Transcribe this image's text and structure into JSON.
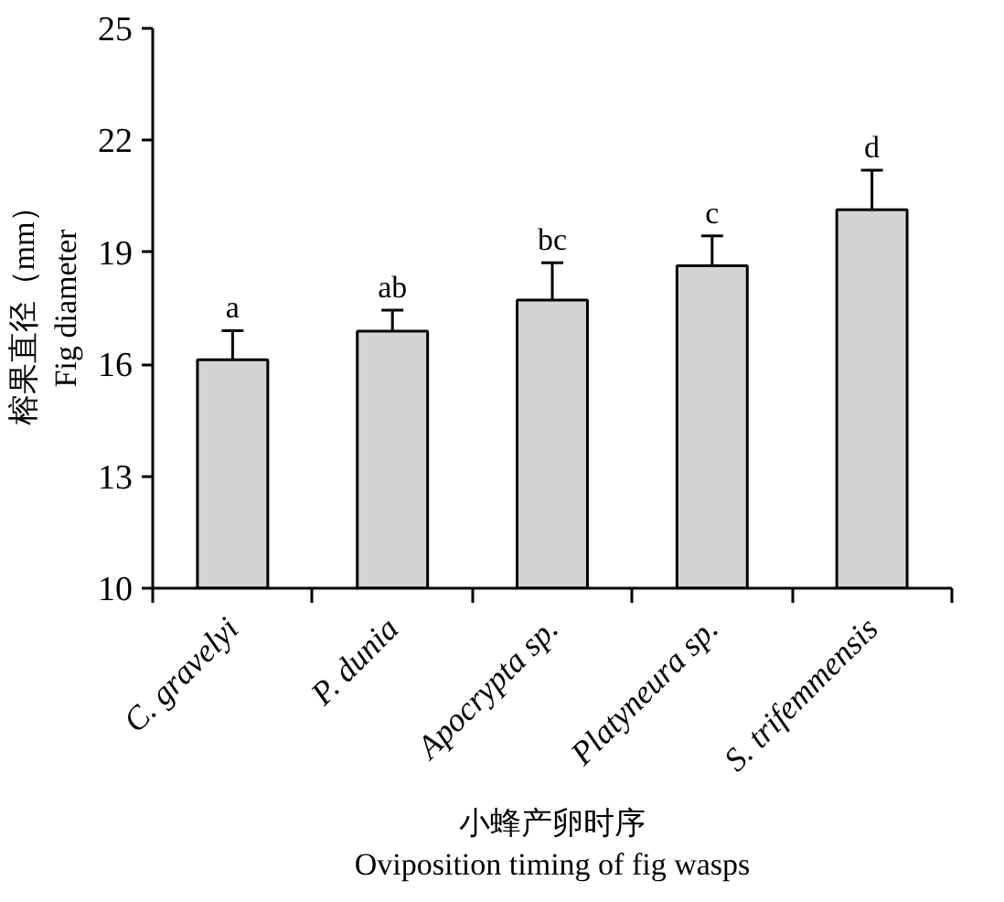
{
  "chart_data": {
    "type": "bar",
    "ylabel": "榕果直径（mm）\nFig diameter",
    "xlabel": "小蜂产卵时序\nOviposition timing of fig wasps",
    "categories": [
      "C. gravelyi",
      "P. dunia",
      "Apocrypta sp.",
      "Platyneura sp.",
      "S. trifemmensis"
    ],
    "values": [
      16.12,
      16.89,
      17.72,
      18.64,
      20.14
    ],
    "errors": [
      0.78,
      0.56,
      1.0,
      0.8,
      1.06
    ],
    "color": "#d4d4d4",
    "ylim": [
      10,
      25
    ],
    "yticks": [
      10,
      13,
      16,
      19,
      22,
      25
    ],
    "grid": false,
    "annotations": [
      {
        "text": "a",
        "x": "C. gravelyi",
        "y": 16.9
      },
      {
        "text": "ab",
        "x": "P. dunia",
        "y": 17.45
      },
      {
        "text": "bc",
        "x": "Apocrypta sp.",
        "y": 18.72
      },
      {
        "text": "c",
        "x": "Platyneura sp.",
        "y": 19.44
      },
      {
        "text": "d",
        "x": "S. trifemmensis",
        "y": 21.2
      }
    ]
  }
}
